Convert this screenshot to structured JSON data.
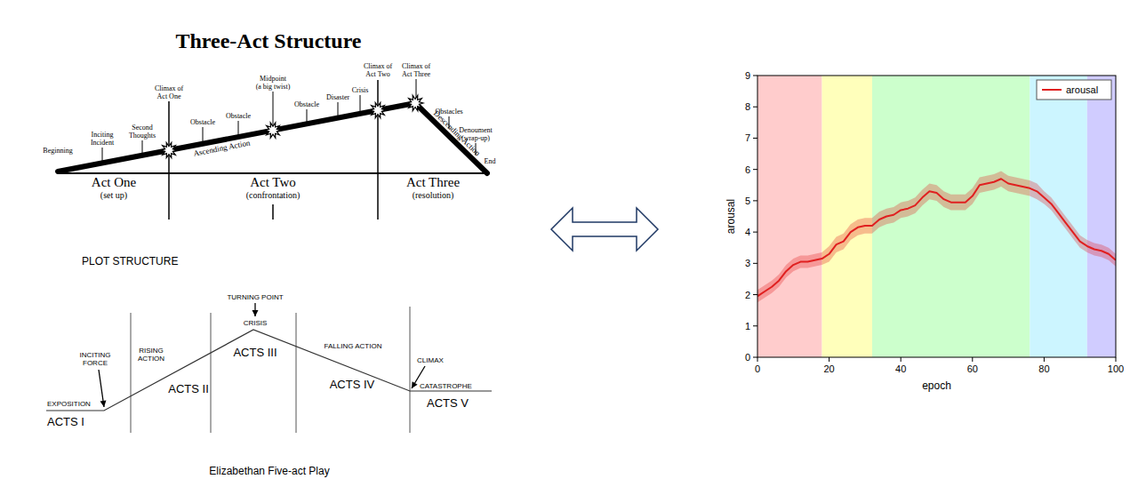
{
  "three_act": {
    "title": "Three-Act Structure",
    "events": [
      [
        "Beginning"
      ],
      [
        "Inciting",
        "Incident"
      ],
      [
        "Second",
        "Thoughts"
      ],
      [
        "Climax of",
        "Act One"
      ],
      [
        "Obstacle"
      ],
      [
        "Obstacle"
      ],
      [
        "Midpoint",
        "(a big twist)"
      ],
      [
        "Obstacle"
      ],
      [
        "Disaster"
      ],
      [
        "Crisis"
      ],
      [
        "Climax of",
        "Act Two"
      ],
      [
        "Climax of",
        "Act Three"
      ],
      [
        "Obstacles"
      ],
      [
        "Denoument",
        "(wrap-up)"
      ],
      [
        "End"
      ]
    ],
    "action_labels": [
      "Ascending Action",
      "Descending Action"
    ],
    "acts": [
      {
        "name": "Act One",
        "subtitle": "(set up)"
      },
      {
        "name": "Act Two",
        "subtitle": "(confrontation)"
      },
      {
        "name": "Act Three",
        "subtitle": "(resolution)"
      }
    ]
  },
  "five_act": {
    "heading": "PLOT STRUCTURE",
    "labels": [
      [
        "EXPOSITION"
      ],
      [
        "INCITING",
        "FORCE"
      ],
      [
        "RISING",
        "ACTION"
      ],
      [
        "TURNING POINT"
      ],
      [
        "CRISIS"
      ],
      [
        "FALLING ACTION"
      ],
      [
        "CLIMAX"
      ],
      [
        "CATASTROPHE"
      ]
    ],
    "acts": [
      "ACTS I",
      "ACTS II",
      "ACTS III",
      "ACTS IV",
      "ACTS V"
    ],
    "caption": "Elizabethan Five-act Play"
  },
  "chart_data": {
    "type": "line",
    "xlabel": "epoch",
    "ylabel": "arousal",
    "x": [
      0,
      2,
      4,
      6,
      8,
      10,
      12,
      14,
      16,
      18,
      20,
      22,
      24,
      26,
      28,
      30,
      32,
      34,
      36,
      38,
      40,
      42,
      44,
      46,
      48,
      50,
      52,
      54,
      56,
      58,
      60,
      62,
      64,
      66,
      68,
      70,
      72,
      74,
      76,
      78,
      80,
      82,
      84,
      86,
      88,
      90,
      92,
      94,
      96,
      98,
      100
    ],
    "series": [
      {
        "name": "arousal",
        "color": "#e02020",
        "values": [
          1.95,
          2.1,
          2.25,
          2.45,
          2.75,
          2.95,
          3.05,
          3.05,
          3.1,
          3.15,
          3.3,
          3.6,
          3.7,
          4.0,
          4.15,
          4.2,
          4.2,
          4.4,
          4.5,
          4.55,
          4.7,
          4.75,
          4.85,
          5.1,
          5.3,
          5.25,
          5.05,
          4.95,
          4.95,
          4.95,
          5.15,
          5.5,
          5.55,
          5.6,
          5.7,
          5.55,
          5.5,
          5.45,
          5.4,
          5.3,
          5.1,
          4.9,
          4.6,
          4.3,
          4.0,
          3.7,
          3.55,
          3.45,
          3.4,
          3.3,
          3.1
        ],
        "error": [
          0.2,
          0.2,
          0.2,
          0.2,
          0.2,
          0.2,
          0.2,
          0.2,
          0.2,
          0.2,
          0.25,
          0.25,
          0.25,
          0.25,
          0.25,
          0.25,
          0.25,
          0.25,
          0.25,
          0.25,
          0.25,
          0.25,
          0.25,
          0.25,
          0.25,
          0.25,
          0.25,
          0.25,
          0.25,
          0.25,
          0.25,
          0.25,
          0.25,
          0.25,
          0.25,
          0.25,
          0.25,
          0.25,
          0.25,
          0.25,
          0.2,
          0.2,
          0.2,
          0.2,
          0.2,
          0.2,
          0.2,
          0.2,
          0.2,
          0.2,
          0.2
        ]
      }
    ],
    "xlim": [
      0,
      100
    ],
    "ylim": [
      0,
      9
    ],
    "xticks": [
      0,
      20,
      40,
      60,
      80,
      100
    ],
    "yticks": [
      0,
      1,
      2,
      3,
      4,
      5,
      6,
      7,
      8,
      9
    ],
    "grid": false,
    "legend": "upper right",
    "bands": [
      {
        "start": 0,
        "end": 18,
        "color": "#ffcccc"
      },
      {
        "start": 18,
        "end": 32,
        "color": "#ffffbb"
      },
      {
        "start": 32,
        "end": 76,
        "color": "#ccffcc"
      },
      {
        "start": 76,
        "end": 92,
        "color": "#ccf5ff"
      },
      {
        "start": 92,
        "end": 100,
        "color": "#d0ccff"
      }
    ]
  }
}
